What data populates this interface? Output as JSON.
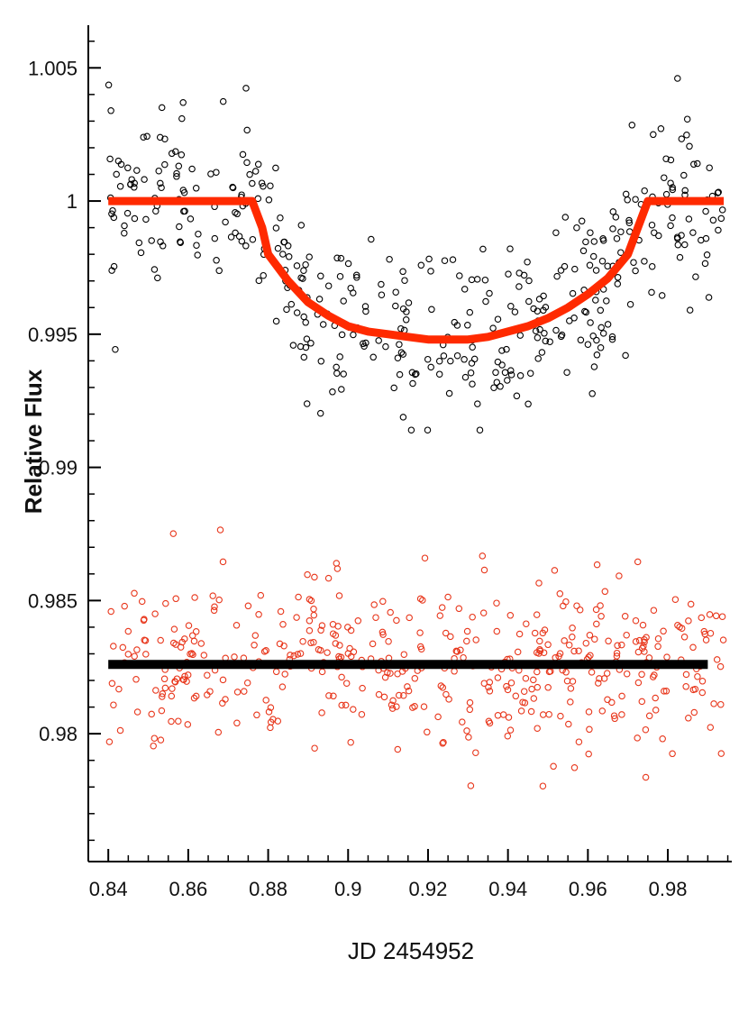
{
  "chart_data": {
    "type": "scatter",
    "title": "",
    "xlabel": "JD 2454952",
    "ylabel": "Relative Flux",
    "xlim": [
      0.835,
      0.996
    ],
    "ylim": [
      0.9752,
      1.0066
    ],
    "x_ticks": [
      0.84,
      0.86,
      0.88,
      0.9,
      0.92,
      0.94,
      0.96,
      0.98
    ],
    "x_tick_labels": [
      "0.84",
      "0.86",
      "0.88",
      "0.9",
      "0.92",
      "0.94",
      "0.96",
      "0.98"
    ],
    "y_ticks": [
      0.98,
      0.985,
      0.99,
      0.995,
      1.0,
      1.005
    ],
    "y_tick_labels": [
      "0.98",
      "0.985",
      "0.99",
      "0.995",
      "1",
      "1.005"
    ],
    "grid": false,
    "legend": "none",
    "series": [
      {
        "kind": "scatter",
        "color": "#000000",
        "marker": "open-circle",
        "trend": "transit light curve: flat 1.000 outside 0.876–0.975, depth minimum ≈0.9948 near 0.926",
        "x_range": [
          0.84,
          0.994
        ],
        "point_count": 420,
        "scatter_sigma": 0.0016
      },
      {
        "kind": "line",
        "color": "#ff2a00",
        "x": [
          0.84,
          0.876,
          0.8785,
          0.88,
          0.885,
          0.89,
          0.895,
          0.9,
          0.905,
          0.91,
          0.915,
          0.92,
          0.925,
          0.93,
          0.935,
          0.94,
          0.945,
          0.95,
          0.955,
          0.96,
          0.965,
          0.97,
          0.9725,
          0.975,
          0.994
        ],
        "y": [
          1.0,
          1.0,
          0.999,
          0.998,
          0.997,
          0.9962,
          0.9957,
          0.9953,
          0.9951,
          0.995,
          0.9949,
          0.9948,
          0.9948,
          0.9948,
          0.9949,
          0.9951,
          0.9953,
          0.9956,
          0.996,
          0.9965,
          0.9971,
          0.998,
          0.999,
          1.0,
          1.0
        ]
      },
      {
        "kind": "scatter",
        "color": "#e8361b",
        "marker": "open-circle",
        "trend": "residuals offset to 0.9825, scatter ±0.002",
        "x_range": [
          0.84,
          0.994
        ],
        "point_count": 470,
        "scatter_sigma": 0.0016
      },
      {
        "kind": "line",
        "color": "#000000",
        "x": [
          0.84,
          0.99
        ],
        "y": [
          0.9826,
          0.9826
        ]
      }
    ]
  }
}
